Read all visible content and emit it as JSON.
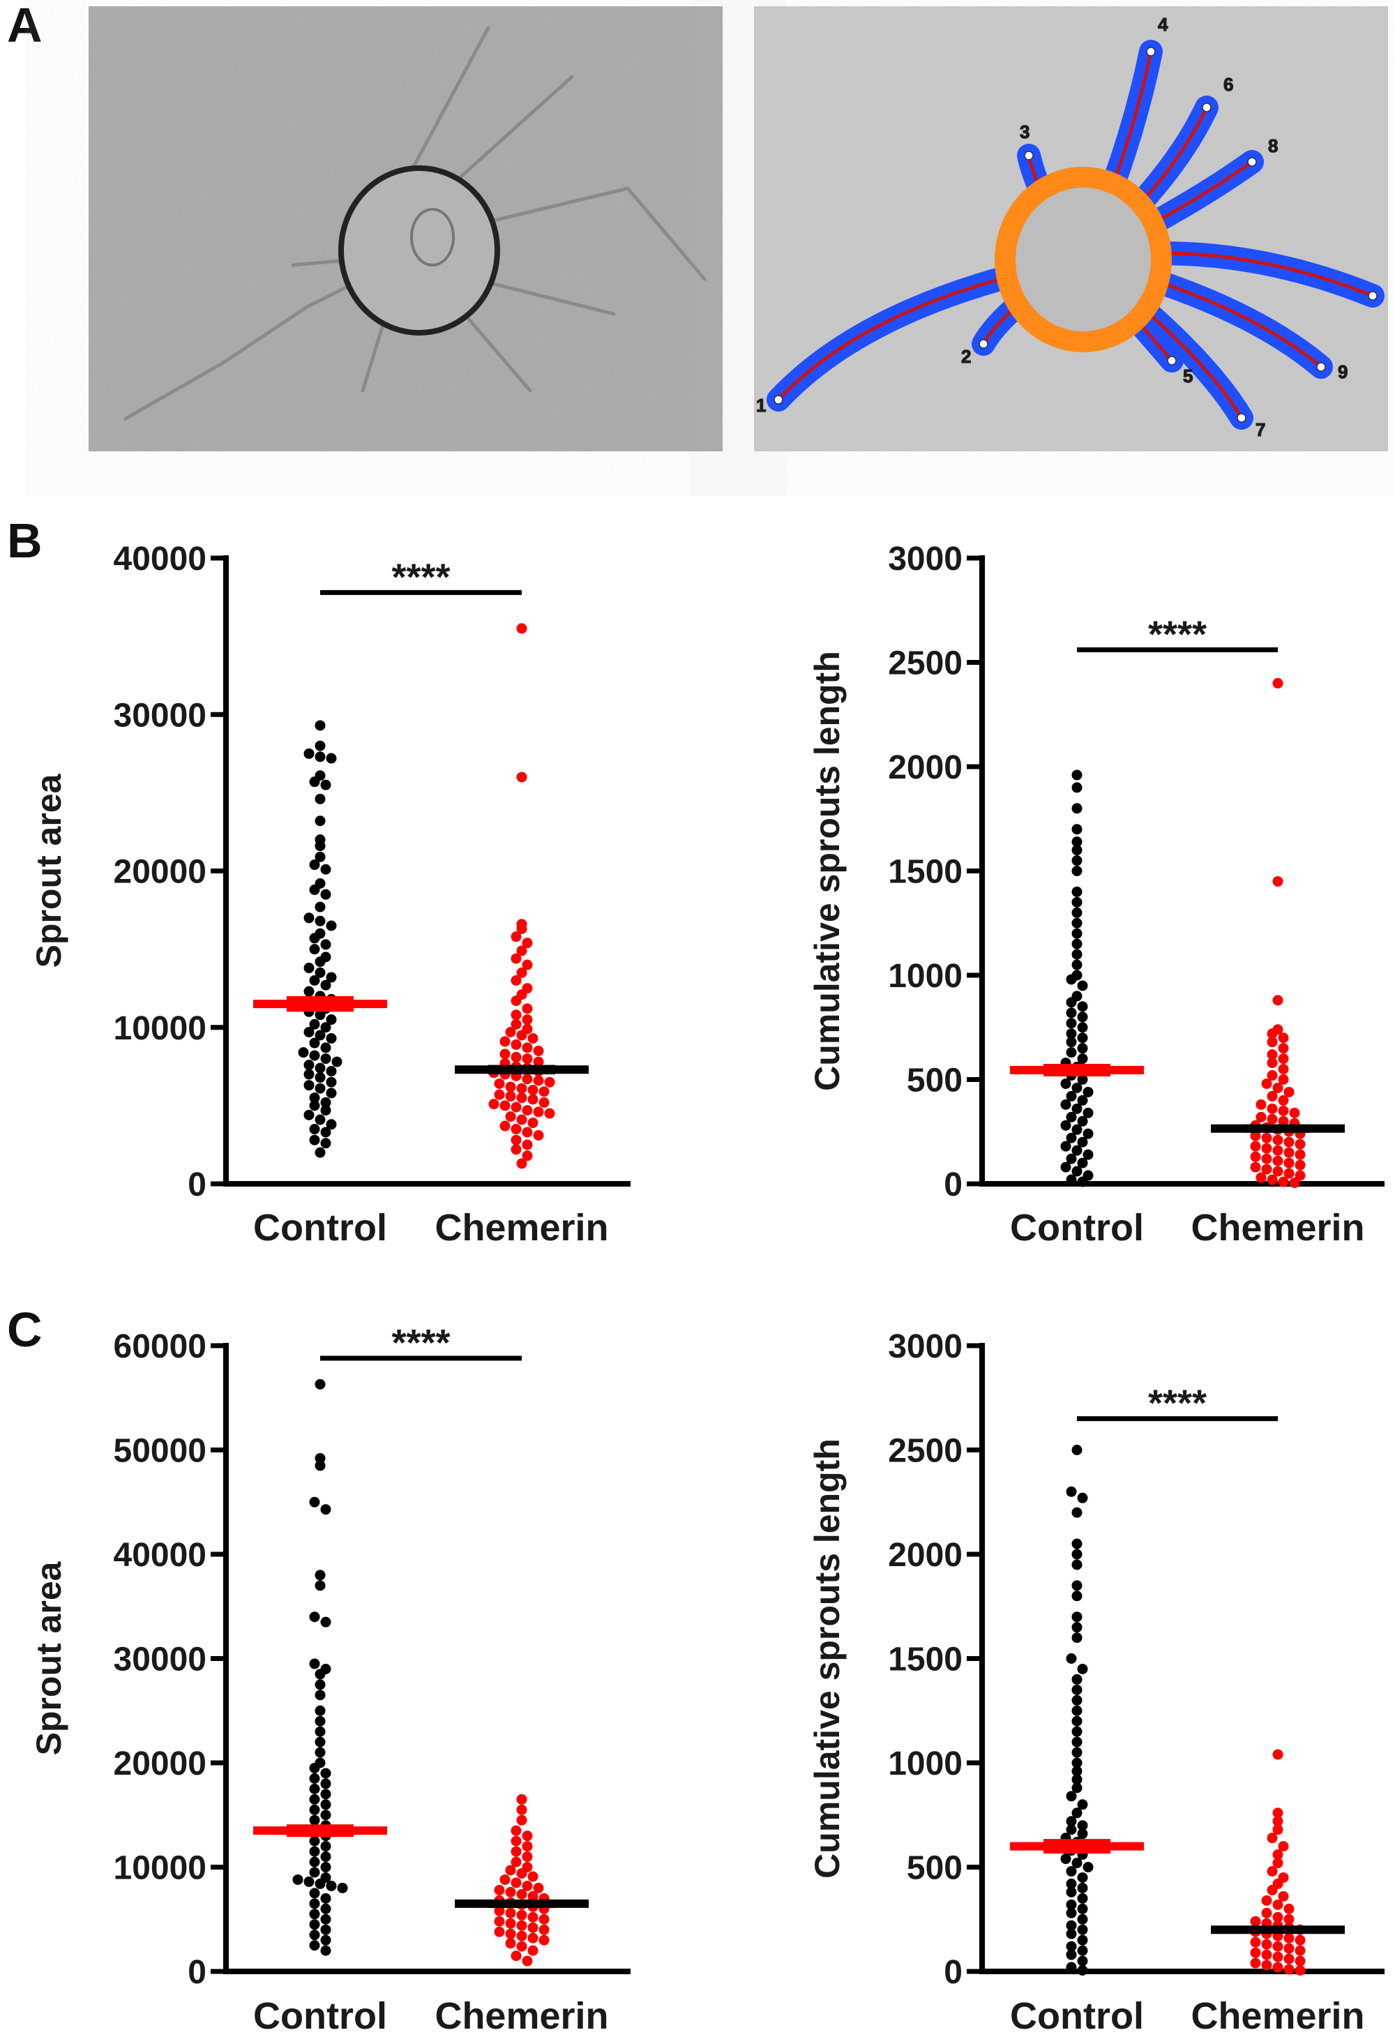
{
  "panel_letters": {
    "a": "A",
    "b": "B",
    "c": "C"
  },
  "panel_a": {
    "sprout_labels": [
      "1",
      "2",
      "3",
      "4",
      "5",
      "6",
      "7",
      "8",
      "9"
    ],
    "colors": {
      "sprout_area": "#1f4fff",
      "sprout_skeleton": "#c81414",
      "spheroid_ring": "#ff8a1a",
      "labels": "#ffee00"
    }
  },
  "colors": {
    "control": "#000000",
    "chemerin": "#ff0000",
    "control_mean": "#ff0000",
    "chemerin_mean": "#000000"
  },
  "chart_data": [
    {
      "panel": "B",
      "type": "scatter",
      "ylabel": "Sprout area",
      "ylim": [
        0,
        40000
      ],
      "yticks": [
        "0",
        "10000",
        "20000",
        "30000",
        "40000"
      ],
      "categories": [
        "Control",
        "Chemerin"
      ],
      "significance": {
        "label": "****",
        "y": 37800
      },
      "series": [
        {
          "category": "Control",
          "mean": 11500,
          "sem": 500,
          "values": [
            29300,
            28000,
            27500,
            27300,
            27200,
            26100,
            25700,
            25500,
            24600,
            23200,
            22000,
            21600,
            20900,
            20400,
            20100,
            19200,
            18800,
            18500,
            17700,
            17000,
            16800,
            16500,
            16000,
            15700,
            15300,
            15000,
            14500,
            14200,
            13800,
            13500,
            13200,
            13000,
            12700,
            12300,
            12000,
            11800,
            11500,
            11200,
            11000,
            10800,
            10500,
            10200,
            10000,
            9700,
            9500,
            9300,
            9000,
            8700,
            8400,
            8200,
            8000,
            7800,
            7600,
            7400,
            7200,
            7000,
            6800,
            6500,
            6300,
            6100,
            5800,
            5500,
            5200,
            5000,
            4700,
            4400,
            4100,
            3800,
            3500,
            3300,
            2800,
            2600,
            2000
          ]
        },
        {
          "category": "Chemerin",
          "mean": 7300,
          "sem": 300,
          "values": [
            35500,
            26000,
            16600,
            16300,
            15800,
            15400,
            14900,
            14400,
            14000,
            13500,
            13000,
            12500,
            12100,
            11700,
            11200,
            10800,
            10500,
            10200,
            9900,
            9700,
            9500,
            9300,
            9100,
            8900,
            8700,
            8500,
            8300,
            8100,
            8000,
            7800,
            7700,
            7500,
            7400,
            7200,
            7100,
            7000,
            6900,
            6700,
            6600,
            6500,
            6400,
            6200,
            6100,
            6000,
            5900,
            5700,
            5600,
            5500,
            5400,
            5200,
            5100,
            5000,
            4900,
            4700,
            4600,
            4500,
            4300,
            4100,
            3900,
            3700,
            3500,
            3300,
            3100,
            2800,
            2500,
            2200,
            1800,
            1300
          ]
        }
      ]
    },
    {
      "panel": "B",
      "type": "scatter",
      "ylabel": "Cumulative sprouts length",
      "ylim": [
        0,
        3000
      ],
      "yticks": [
        "0",
        "500",
        "1000",
        "1500",
        "2000",
        "2500",
        "3000"
      ],
      "categories": [
        "Control",
        "Chemerin"
      ],
      "significance": {
        "label": "****",
        "y": 2560
      },
      "series": [
        {
          "category": "Control",
          "mean": 545,
          "sem": 30,
          "values": [
            1960,
            1900,
            1800,
            1700,
            1640,
            1600,
            1550,
            1500,
            1400,
            1350,
            1300,
            1250,
            1200,
            1150,
            1100,
            1050,
            1000,
            980,
            950,
            900,
            870,
            850,
            820,
            800,
            770,
            750,
            720,
            700,
            680,
            650,
            630,
            600,
            580,
            560,
            540,
            520,
            500,
            480,
            460,
            440,
            420,
            400,
            380,
            360,
            340,
            320,
            300,
            280,
            260,
            240,
            220,
            200,
            180,
            160,
            140,
            120,
            100,
            80,
            60,
            40,
            20,
            10
          ]
        },
        {
          "category": "Chemerin",
          "mean": 265,
          "sem": 20,
          "values": [
            2400,
            1450,
            880,
            740,
            720,
            700,
            680,
            650,
            620,
            600,
            580,
            550,
            520,
            500,
            480,
            460,
            440,
            420,
            400,
            380,
            360,
            350,
            340,
            320,
            310,
            300,
            290,
            280,
            270,
            260,
            250,
            240,
            230,
            220,
            210,
            200,
            190,
            180,
            170,
            160,
            150,
            140,
            130,
            120,
            110,
            100,
            90,
            80,
            70,
            60,
            50,
            40,
            30,
            20,
            10,
            5
          ]
        }
      ]
    },
    {
      "panel": "C",
      "type": "scatter",
      "ylabel": "Sprout area",
      "ylim": [
        0,
        60000
      ],
      "yticks": [
        "0",
        "10000",
        "20000",
        "30000",
        "40000",
        "50000",
        "60000"
      ],
      "categories": [
        "Control",
        "Chemerin"
      ],
      "significance": {
        "label": "****",
        "y": 58800
      },
      "series": [
        {
          "category": "Control",
          "mean": 13500,
          "sem": 600,
          "values": [
            56300,
            49200,
            48500,
            45000,
            44300,
            38000,
            37000,
            34000,
            33500,
            29500,
            29000,
            28500,
            27500,
            26500,
            25000,
            24000,
            23000,
            22000,
            21000,
            20000,
            19500,
            19000,
            18500,
            18000,
            17500,
            17000,
            16500,
            16000,
            15500,
            15000,
            14500,
            14000,
            13500,
            13000,
            12500,
            12000,
            11500,
            11000,
            10500,
            10000,
            9500,
            9000,
            8800,
            8600,
            8400,
            8200,
            8000,
            7500,
            7000,
            6500,
            6000,
            5500,
            5000,
            4500,
            4000,
            3500,
            3000,
            2500,
            2000
          ]
        },
        {
          "category": "Chemerin",
          "mean": 6500,
          "sem": 250,
          "values": [
            16500,
            15500,
            14500,
            13500,
            13000,
            12500,
            12000,
            11500,
            11000,
            10500,
            10000,
            9700,
            9400,
            9100,
            8800,
            8500,
            8200,
            8000,
            7800,
            7600,
            7400,
            7200,
            7000,
            6800,
            6600,
            6400,
            6200,
            6000,
            5800,
            5600,
            5400,
            5200,
            5000,
            4800,
            4600,
            4400,
            4200,
            4000,
            3800,
            3600,
            3400,
            3200,
            3000,
            2700,
            2400,
            2000,
            1500,
            1000
          ]
        }
      ]
    },
    {
      "panel": "C",
      "type": "scatter",
      "ylabel": "Cumulative sprouts length",
      "ylim": [
        0,
        3000
      ],
      "yticks": [
        "0",
        "500",
        "1000",
        "1500",
        "2000",
        "2500",
        "3000"
      ],
      "categories": [
        "Control",
        "Chemerin"
      ],
      "significance": {
        "label": "****",
        "y": 2650
      },
      "series": [
        {
          "category": "Control",
          "mean": 600,
          "sem": 35,
          "values": [
            2500,
            2300,
            2270,
            2200,
            2050,
            2000,
            1950,
            1850,
            1800,
            1700,
            1650,
            1600,
            1500,
            1450,
            1400,
            1350,
            1300,
            1250,
            1200,
            1150,
            1100,
            1050,
            1000,
            960,
            920,
            880,
            840,
            800,
            760,
            720,
            700,
            680,
            660,
            640,
            620,
            600,
            580,
            560,
            540,
            520,
            500,
            480,
            450,
            420,
            400,
            380,
            350,
            320,
            300,
            280,
            250,
            220,
            200,
            180,
            150,
            120,
            100,
            80,
            50,
            20,
            5
          ]
        },
        {
          "category": "Chemerin",
          "mean": 200,
          "sem": 15,
          "values": [
            1040,
            760,
            720,
            680,
            640,
            600,
            560,
            520,
            480,
            450,
            420,
            390,
            360,
            340,
            320,
            300,
            280,
            260,
            250,
            240,
            230,
            220,
            210,
            200,
            190,
            180,
            170,
            160,
            150,
            140,
            130,
            120,
            110,
            100,
            90,
            80,
            70,
            60,
            50,
            40,
            30,
            20,
            10,
            5
          ]
        }
      ]
    }
  ]
}
